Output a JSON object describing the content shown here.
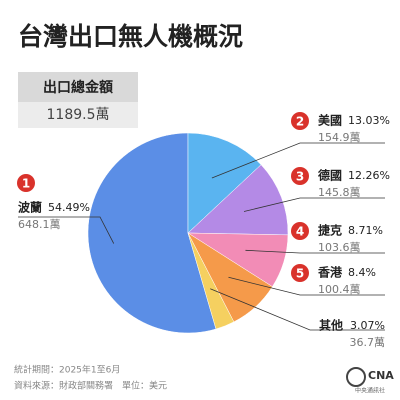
{
  "chart_data": {
    "type": "pie",
    "title": "台灣出口無人機概況",
    "total_label": "出口總金額",
    "total": "1189.5萬",
    "categories": [
      "波蘭",
      "美國",
      "德國",
      "捷克",
      "香港",
      "其他"
    ],
    "values": [
      54.49,
      13.03,
      12.26,
      8.71,
      8.4,
      3.07
    ],
    "value_labels": [
      "54.49%",
      "13.03%",
      "12.26%",
      "8.71%",
      "8.4%",
      "3.07%"
    ],
    "amounts": [
      "648.1萬",
      "154.9萬",
      "145.8萬",
      "103.6萬",
      "100.4萬",
      "36.7萬"
    ],
    "ranks": [
      "1",
      "2",
      "3",
      "4",
      "5",
      null
    ],
    "colors": [
      "#5b8ee6",
      "#5ab4f0",
      "#b48ae6",
      "#f28cb6",
      "#f59a4a",
      "#f5d060"
    ],
    "rank_color": "#d9322b",
    "notes": [
      "統計期間：2025年1至6月",
      "資料來源：財政部關務署　單位：美元"
    ],
    "logo": "CNA",
    "logo_sub": "中央通訊社"
  }
}
